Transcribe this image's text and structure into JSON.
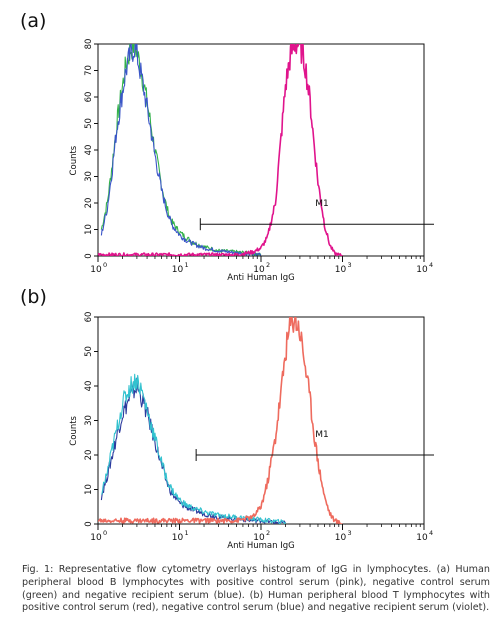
{
  "panels": {
    "a": {
      "label": "(a)"
    },
    "b": {
      "label": "(b)"
    }
  },
  "caption": "Fig. 1: Representative flow cytometry overlays histogram of IgG in lymphocytes. (a) Human peripheral blood B lymphocytes with positive control serum (pink), negative control serum (green) and negative recipient serum (blue).   (b) Human peripheral blood T lymphocytes with positive control serum (red), negative control serum (blue) and negative recipient serum (violet).",
  "chart_data": [
    {
      "type": "line",
      "panel": "a",
      "xlabel": "Anti Human IgG",
      "ylabel": "Counts",
      "x_scale": "log",
      "xlim": [
        1,
        10000
      ],
      "ylim": [
        0,
        80
      ],
      "xticks": [
        {
          "value": 1,
          "base": "10",
          "exp": "0"
        },
        {
          "value": 10,
          "base": "10",
          "exp": "1"
        },
        {
          "value": 100,
          "base": "10",
          "exp": "2"
        },
        {
          "value": 1000,
          "base": "10",
          "exp": "3"
        },
        {
          "value": 10000,
          "base": "10",
          "exp": "4"
        }
      ],
      "yticks": [
        0,
        10,
        20,
        30,
        40,
        50,
        60,
        70,
        80
      ],
      "grid": false,
      "gate": {
        "label": "M1",
        "x_start": 18,
        "x_end": 10000,
        "y": 12
      },
      "series": [
        {
          "color": "#33b24a",
          "x": [
            1.1,
            1.3,
            1.5,
            1.7,
            2.0,
            2.2,
            2.5,
            2.8,
            3.0,
            3.5,
            4.0,
            5.0,
            6.0,
            7.0,
            8.0,
            10,
            12,
            15,
            20,
            30,
            50,
            80,
            100
          ],
          "y": [
            10,
            20,
            35,
            50,
            64,
            72,
            78,
            80,
            77,
            68,
            58,
            40,
            27,
            18,
            13,
            9,
            7,
            5,
            3.5,
            2,
            1.5,
            1,
            0.5
          ]
        },
        {
          "color": "#3a55c8",
          "x": [
            1.1,
            1.3,
            1.5,
            1.7,
            2.0,
            2.2,
            2.5,
            2.8,
            3.0,
            3.5,
            4.0,
            5.0,
            6.0,
            7.0,
            8.0,
            10,
            12,
            15,
            20,
            30,
            50,
            80,
            100
          ],
          "y": [
            8,
            18,
            33,
            48,
            62,
            70,
            76,
            79,
            76,
            66,
            56,
            38,
            25,
            17,
            12,
            8,
            6,
            4.5,
            3,
            2,
            1.2,
            0.8,
            0.4
          ]
        },
        {
          "color": "#e0148c",
          "x": [
            1,
            10,
            50,
            80,
            100,
            120,
            150,
            180,
            200,
            230,
            260,
            300,
            350,
            400,
            450,
            500,
            600,
            700,
            800,
            1000
          ],
          "y": [
            0.5,
            0.5,
            0.5,
            1.5,
            3,
            7,
            20,
            48,
            64,
            76,
            80,
            80,
            72,
            58,
            42,
            28,
            12,
            4,
            1,
            0
          ]
        }
      ]
    },
    {
      "type": "line",
      "panel": "b",
      "xlabel": "Anti Human IgG",
      "ylabel": "Counts",
      "x_scale": "log",
      "xlim": [
        1,
        10000
      ],
      "ylim": [
        0,
        60
      ],
      "xticks": [
        {
          "value": 1,
          "base": "10",
          "exp": "0"
        },
        {
          "value": 10,
          "base": "10",
          "exp": "1"
        },
        {
          "value": 100,
          "base": "10",
          "exp": "2"
        },
        {
          "value": 1000,
          "base": "10",
          "exp": "3"
        },
        {
          "value": 10000,
          "base": "10",
          "exp": "4"
        }
      ],
      "yticks": [
        0,
        10,
        20,
        30,
        40,
        50,
        60
      ],
      "grid": false,
      "gate": {
        "label": "M1",
        "x_start": 16,
        "x_end": 10000,
        "y": 20
      },
      "series": [
        {
          "color": "#2b3a9e",
          "x": [
            1.1,
            1.3,
            1.5,
            1.8,
            2.0,
            2.5,
            3.0,
            3.5,
            4.0,
            5.0,
            6.0,
            7.0,
            8.0,
            10,
            12,
            15,
            20,
            30,
            50,
            80,
            100,
            150,
            200
          ],
          "y": [
            8,
            14,
            20,
            28,
            32,
            37,
            40,
            36,
            32,
            24,
            17,
            12,
            9,
            6,
            5,
            4,
            3,
            2,
            1.5,
            1,
            1,
            0.5,
            0.3
          ]
        },
        {
          "color": "#33c2cf",
          "x": [
            1.1,
            1.3,
            1.5,
            1.8,
            2.0,
            2.5,
            3.0,
            3.5,
            4.0,
            5.0,
            6.0,
            7.0,
            8.0,
            10,
            12,
            15,
            20,
            30,
            50,
            80,
            100,
            150,
            200
          ],
          "y": [
            9,
            15,
            22,
            30,
            35,
            40,
            42,
            38,
            33,
            25,
            18,
            13,
            10,
            7,
            5.5,
            4.5,
            3.5,
            2.5,
            2,
            1.5,
            1.2,
            0.8,
            0.5
          ]
        },
        {
          "color": "#ee6b5e",
          "x": [
            1,
            10,
            50,
            80,
            100,
            120,
            150,
            180,
            200,
            230,
            260,
            300,
            350,
            400,
            450,
            500,
            600,
            700,
            800,
            1000
          ],
          "y": [
            1,
            1,
            1,
            2,
            5,
            12,
            25,
            40,
            50,
            58,
            60,
            56,
            46,
            36,
            26,
            18,
            8,
            3,
            1,
            0
          ]
        }
      ]
    }
  ]
}
